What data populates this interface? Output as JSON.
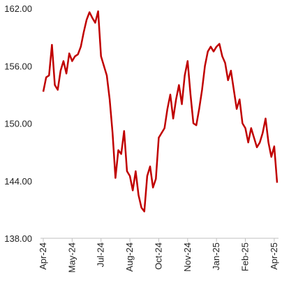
{
  "chart_data": {
    "type": "line",
    "categories": [
      "Apr-24",
      null,
      null,
      null,
      null,
      null,
      null,
      null,
      null,
      null,
      "May-24",
      null,
      null,
      null,
      null,
      null,
      null,
      null,
      null,
      null,
      "Jul-24",
      null,
      null,
      null,
      null,
      null,
      null,
      null,
      null,
      null,
      "Aug-24",
      null,
      null,
      null,
      null,
      null,
      null,
      null,
      null,
      null,
      "Oct-24",
      null,
      null,
      null,
      null,
      null,
      null,
      null,
      null,
      null,
      "Nov-24",
      null,
      null,
      null,
      null,
      null,
      null,
      null,
      null,
      null,
      "Jan-25",
      null,
      null,
      null,
      null,
      null,
      null,
      null,
      null,
      null,
      "Feb-25",
      null,
      null,
      null,
      null,
      null,
      null,
      null,
      null,
      null,
      "Apr-25",
      null
    ],
    "series": [
      {
        "color": "#c00000",
        "values": [
          153.3,
          154.8,
          155.0,
          158.2,
          154.0,
          153.5,
          155.5,
          156.5,
          155.2,
          157.3,
          156.5,
          157.0,
          157.2,
          158.0,
          159.5,
          160.8,
          161.6,
          161.0,
          160.5,
          161.7,
          157.0,
          156.0,
          155.0,
          152.5,
          149.0,
          144.3,
          147.2,
          146.8,
          149.2,
          145.0,
          144.5,
          143.0,
          145.0,
          142.5,
          141.2,
          140.8,
          144.5,
          145.5,
          143.3,
          144.2,
          148.5,
          149.0,
          149.5,
          151.5,
          153.0,
          150.5,
          152.5,
          154.0,
          152.0,
          155.0,
          156.5,
          153.0,
          150.0,
          149.8,
          151.5,
          153.5,
          156.0,
          157.5,
          158.0,
          157.5,
          158.0,
          158.3,
          157.0,
          156.3,
          154.5,
          155.5,
          153.5,
          151.5,
          152.5,
          150.0,
          149.5,
          148.0,
          149.5,
          148.5,
          147.5,
          148.0,
          149.0,
          150.5,
          148.0,
          146.5,
          147.6,
          143.8
        ]
      }
    ],
    "ylim": [
      138,
      162
    ],
    "yticks": [
      {
        "value": 138,
        "label": "138.00"
      },
      {
        "value": 144,
        "label": "144.00"
      },
      {
        "value": 150,
        "label": "150.00"
      },
      {
        "value": 156,
        "label": "156.00"
      },
      {
        "value": 162,
        "label": "162.00"
      }
    ]
  }
}
